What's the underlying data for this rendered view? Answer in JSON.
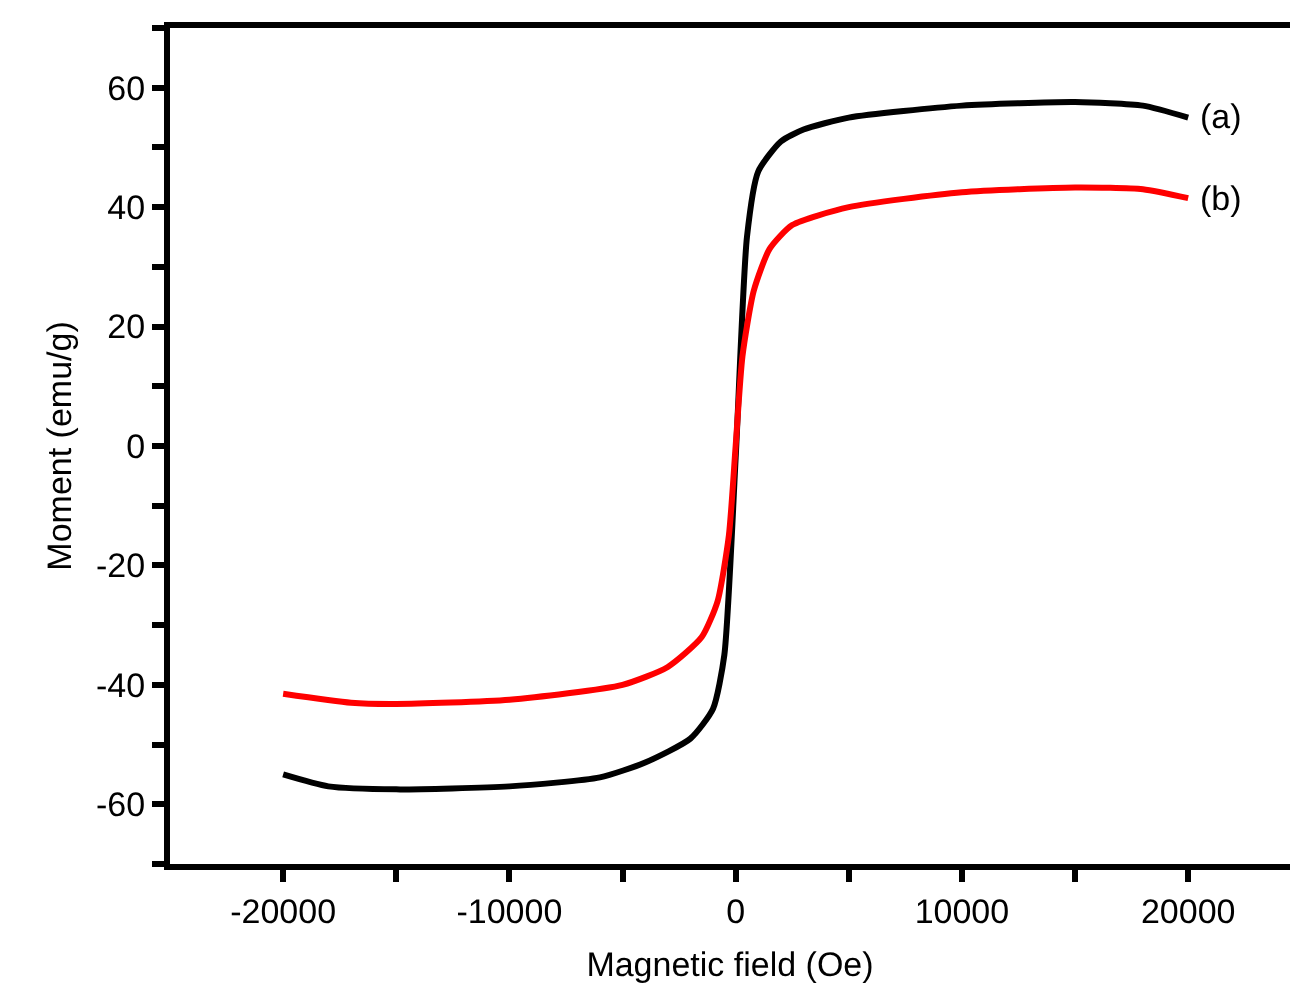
{
  "chart_data": {
    "type": "line",
    "xlabel": "Magnetic field (Oe)",
    "ylabel": "Moment (emu/g)",
    "xlim": [
      -25000,
      24500
    ],
    "ylim": [
      -70,
      70
    ],
    "xticks": [
      -20000,
      {
        "value": -15000,
        "label": null
      },
      -10000,
      {
        "value": -5000,
        "label": null
      },
      0,
      {
        "value": 5000,
        "label": null
      },
      10000,
      {
        "value": 15000,
        "label": null
      },
      20000
    ],
    "yticks": [
      {
        "value": -70,
        "label": null
      },
      -60,
      {
        "value": -50,
        "label": null
      },
      -40,
      {
        "value": -30,
        "label": null
      },
      -20,
      {
        "value": -10,
        "label": null
      },
      0,
      {
        "value": 10,
        "label": null
      },
      20,
      {
        "value": 30,
        "label": null
      },
      40,
      {
        "value": 50,
        "label": null
      },
      60,
      {
        "value": 70,
        "label": null
      }
    ],
    "marker": "none",
    "line_style": "solid",
    "series": [
      {
        "name": "(a)",
        "color": "#000000",
        "x": [
          -20000,
          -18000,
          -15000,
          -10000,
          -6000,
          -4000,
          -2000,
          -1000,
          -500,
          0,
          500,
          1000,
          2000,
          3000,
          5000,
          10000,
          15000,
          18000,
          20000
        ],
        "values": [
          -55,
          -57,
          -57.5,
          -57,
          -55.5,
          -53,
          -49,
          -44,
          -35,
          -2,
          35,
          46,
          51,
          53,
          55,
          57,
          57.6,
          57,
          55
        ]
      },
      {
        "name": "(b)",
        "color": "#ff0000",
        "x": [
          -20000,
          -17000,
          -15000,
          -10000,
          -5000,
          -3000,
          -1500,
          -800,
          -300,
          0,
          300,
          800,
          1500,
          2500,
          5000,
          10000,
          15000,
          18000,
          20000
        ],
        "values": [
          -41.5,
          -43,
          -43.2,
          -42.5,
          -40,
          -37,
          -32,
          -26,
          -15,
          0,
          15,
          26,
          33,
          37,
          40,
          42.5,
          43.3,
          43,
          41.5
        ]
      }
    ]
  }
}
